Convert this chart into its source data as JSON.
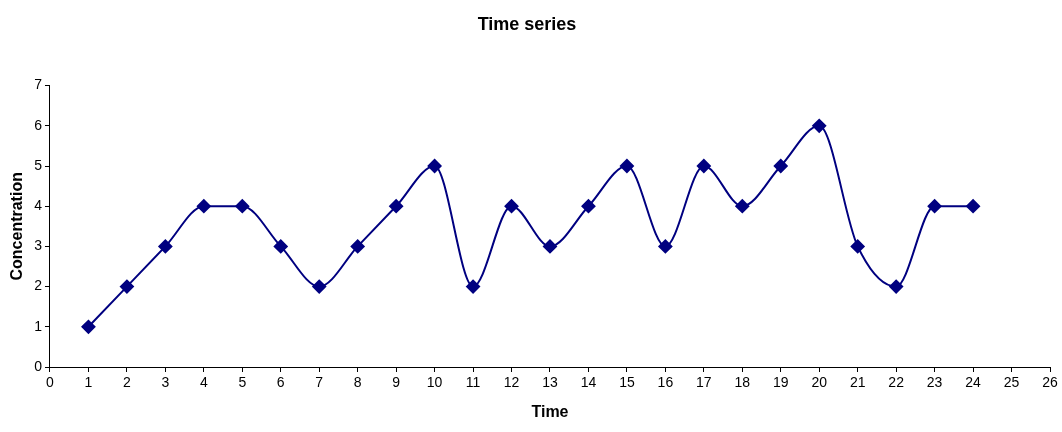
{
  "chart_data": {
    "type": "line",
    "title": "Time series",
    "xlabel": "Time",
    "ylabel": "Concentration",
    "x": [
      1,
      2,
      3,
      4,
      5,
      6,
      7,
      8,
      9,
      10,
      11,
      12,
      13,
      14,
      15,
      16,
      17,
      18,
      19,
      20,
      21,
      22,
      23,
      24
    ],
    "series": [
      {
        "color": "#000080",
        "values": [
          1,
          2,
          3,
          4,
          4,
          3,
          2,
          3,
          4,
          5,
          2,
          4,
          3,
          4,
          5,
          3,
          5,
          4,
          5,
          6,
          3,
          2,
          4,
          4
        ]
      }
    ],
    "xlim": [
      0,
      26
    ],
    "xticks": [
      0,
      1,
      2,
      3,
      4,
      5,
      6,
      7,
      8,
      9,
      10,
      11,
      12,
      13,
      14,
      15,
      16,
      17,
      18,
      19,
      20,
      21,
      22,
      23,
      24,
      25,
      26
    ],
    "ylim": [
      0,
      7
    ],
    "yticks": [
      0,
      1,
      2,
      3,
      4,
      5,
      6,
      7
    ],
    "grid": false,
    "marker": "diamond",
    "line_style": "solid"
  }
}
